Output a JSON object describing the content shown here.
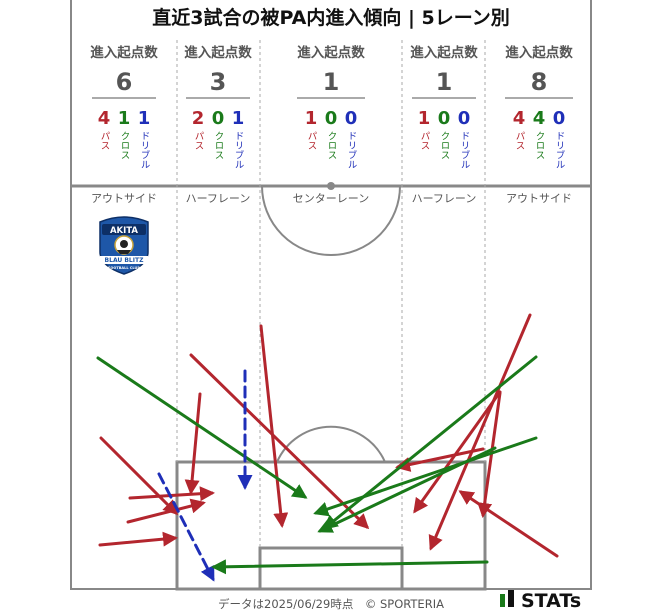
{
  "title": "直近3試合の被PA内進入傾向 | 5レーン別",
  "entry_header": "進入起点数",
  "type_labels": {
    "pass": "パス",
    "cross": "クロス",
    "dribble": "ドリブル"
  },
  "colors": {
    "pass": "#b3262e",
    "cross": "#1a7a1a",
    "dribble": "#1f2fb8",
    "lines": "#888888"
  },
  "lanes": [
    {
      "name": "アウトサイド",
      "total": "6",
      "pass": "4",
      "cross": "1",
      "dribble": "1"
    },
    {
      "name": "ハーフレーン",
      "total": "3",
      "pass": "2",
      "cross": "0",
      "dribble": "1"
    },
    {
      "name": "センターレーン",
      "total": "1",
      "pass": "1",
      "cross": "0",
      "dribble": "0"
    },
    {
      "name": "ハーフレーン",
      "total": "1",
      "pass": "1",
      "cross": "0",
      "dribble": "0"
    },
    {
      "name": "アウトサイド",
      "total": "8",
      "pass": "4",
      "cross": "4",
      "dribble": "0"
    }
  ],
  "logo": {
    "top_text": "AKITA",
    "bottom_text": "BLAU BLITZ",
    "sub_text": "FOOTBALL CLUB"
  },
  "footer": {
    "note": "データは2025/06/29時点　© SPORTERIA",
    "brand": "STATs"
  }
}
